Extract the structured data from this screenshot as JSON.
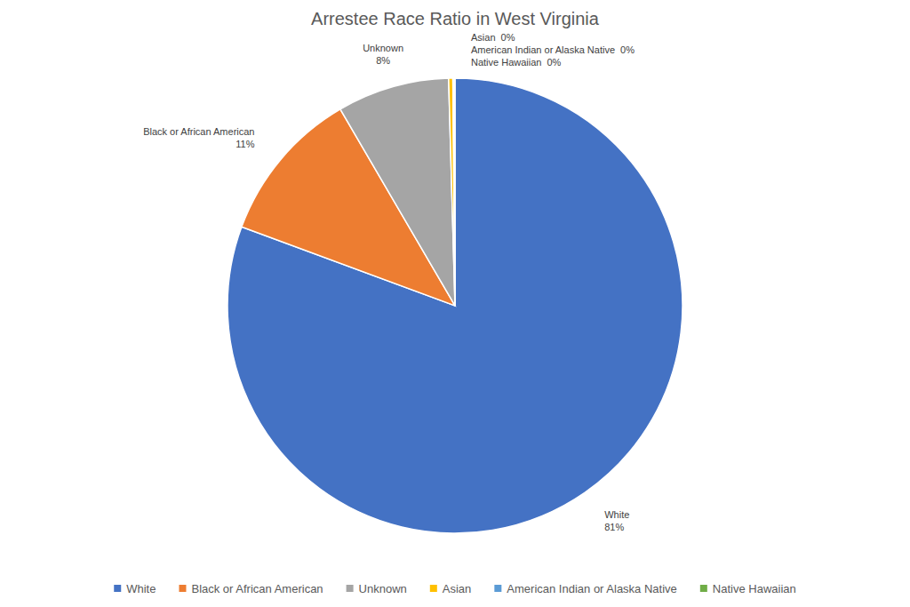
{
  "chart_data": {
    "type": "pie",
    "title": "Arrestee Race Ratio in  West Virginia",
    "categories": [
      "White",
      "Black or African American",
      "Unknown",
      "Asian",
      "American Indian or Alaska Native",
      "Native Hawaiian"
    ],
    "values": [
      81,
      11,
      8,
      0.3,
      0.1,
      0.05
    ],
    "value_labels": [
      "81%",
      "11%",
      "8%",
      "0%",
      "0%",
      "0%"
    ],
    "colors": [
      "#4472c4",
      "#ed7d31",
      "#a5a5a5",
      "#ffc000",
      "#5b9bd5",
      "#70ad47"
    ],
    "data_labels": true,
    "legend": "bottom"
  }
}
